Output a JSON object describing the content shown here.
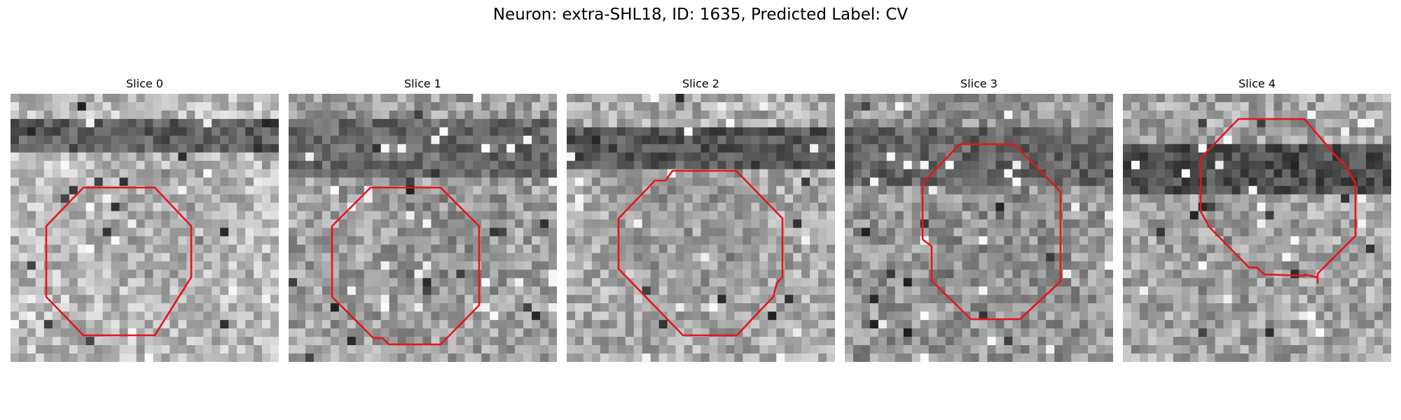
{
  "figure": {
    "title": "Neuron: extra-SHL18, ID: 1635, Predicted Label: CV"
  },
  "contour_color": "#e8141c",
  "panels": [
    {
      "title": "Slice 0"
    },
    {
      "title": "Slice 1"
    },
    {
      "title": "Slice 2"
    },
    {
      "title": "Slice 3"
    },
    {
      "title": "Slice 4"
    }
  ]
}
